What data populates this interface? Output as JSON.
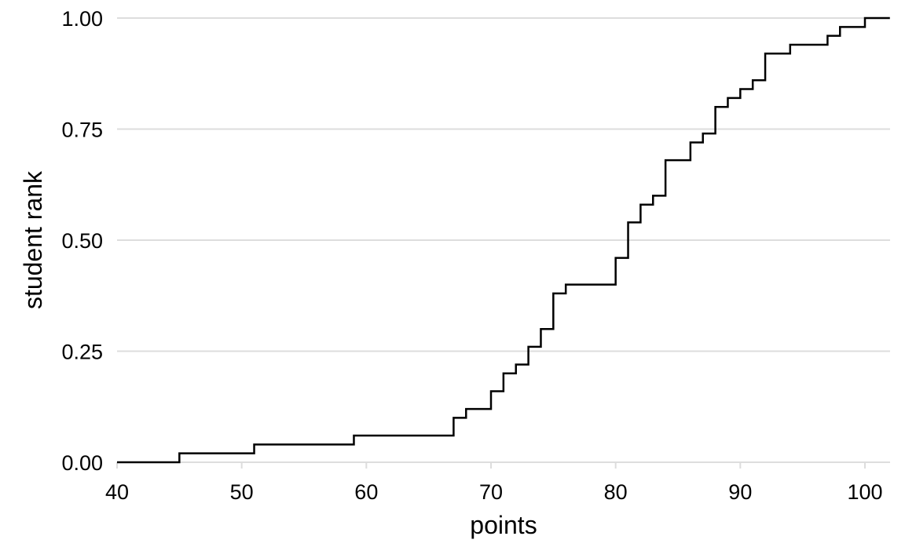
{
  "chart_data": {
    "type": "line",
    "subtype": "step (empirical cumulative distribution)",
    "title": "",
    "xlabel": "points",
    "ylabel": "student rank",
    "xlim": [
      40,
      102
    ],
    "ylim": [
      0,
      1
    ],
    "x_ticks": [
      40,
      50,
      60,
      70,
      80,
      90,
      100
    ],
    "x_tick_labels": [
      "40",
      "50",
      "60",
      "70",
      "80",
      "90",
      "100"
    ],
    "y_ticks": [
      0,
      0.25,
      0.5,
      0.75,
      1
    ],
    "y_tick_labels": [
      "0.00",
      "0.25",
      "0.50",
      "0.75",
      "1.00"
    ],
    "grid": "horizontal major gridlines only",
    "legend": "none",
    "line_color": "#000000",
    "grid_color": "#dddddd",
    "series": [
      {
        "steps": [
          {
            "x": 45,
            "y": 0.02
          },
          {
            "x": 51,
            "y": 0.04
          },
          {
            "x": 59,
            "y": 0.06
          },
          {
            "x": 67,
            "y": 0.1
          },
          {
            "x": 68,
            "y": 0.12
          },
          {
            "x": 70,
            "y": 0.16
          },
          {
            "x": 71,
            "y": 0.2
          },
          {
            "x": 72,
            "y": 0.22
          },
          {
            "x": 73,
            "y": 0.26
          },
          {
            "x": 74,
            "y": 0.3
          },
          {
            "x": 75,
            "y": 0.38
          },
          {
            "x": 76,
            "y": 0.4
          },
          {
            "x": 80,
            "y": 0.46
          },
          {
            "x": 81,
            "y": 0.54
          },
          {
            "x": 82,
            "y": 0.58
          },
          {
            "x": 83,
            "y": 0.6
          },
          {
            "x": 84,
            "y": 0.68
          },
          {
            "x": 86,
            "y": 0.72
          },
          {
            "x": 87,
            "y": 0.74
          },
          {
            "x": 88,
            "y": 0.8
          },
          {
            "x": 89,
            "y": 0.82
          },
          {
            "x": 90,
            "y": 0.84
          },
          {
            "x": 91,
            "y": 0.86
          },
          {
            "x": 92,
            "y": 0.92
          },
          {
            "x": 94,
            "y": 0.94
          },
          {
            "x": 97,
            "y": 0.96
          },
          {
            "x": 98,
            "y": 0.98
          },
          {
            "x": 100,
            "y": 1.0
          }
        ]
      }
    ]
  }
}
